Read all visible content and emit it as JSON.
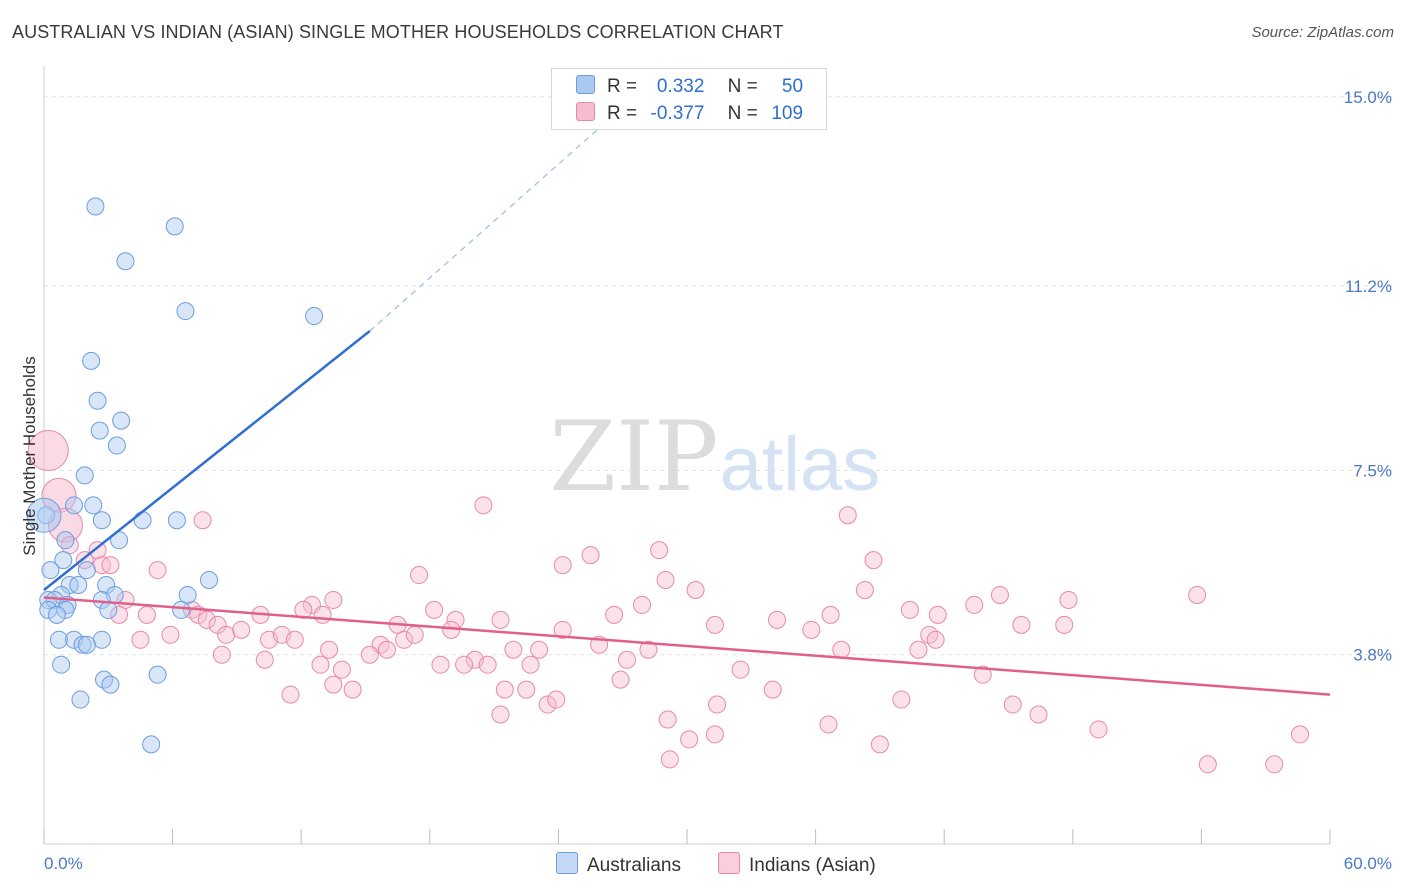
{
  "header": {
    "title": "AUSTRALIAN VS INDIAN (ASIAN) SINGLE MOTHER HOUSEHOLDS CORRELATION CHART",
    "source": "Source: ZipAtlas.com"
  },
  "watermark": {
    "zip": "ZIP",
    "atlas": "atlas"
  },
  "legend": {
    "r_label": "R =",
    "n_label": "N =",
    "rows": [
      {
        "r": "0.332",
        "n": "50",
        "color": "#aac8f0",
        "border": "#6a9ee0"
      },
      {
        "r": "-0.377",
        "n": "109",
        "color": "#f6bcd0",
        "border": "#e889aa"
      }
    ]
  },
  "bottom_legend": [
    {
      "label": "Australians",
      "color": "#c4d9f5",
      "border": "#6a9ee0"
    },
    {
      "label": "Indians (Asian)",
      "color": "#f9cfdd",
      "border": "#e889aa"
    }
  ],
  "chart_data": {
    "type": "scatter",
    "title": "AUSTRALIAN VS INDIAN (ASIAN) SINGLE MOTHER HOUSEHOLDS CORRELATION CHART",
    "xlabel": "",
    "ylabel": "Single Mother Households",
    "xlim": [
      0,
      60
    ],
    "ylim": [
      0,
      15.5
    ],
    "x_tick_labels": [
      {
        "value": 0,
        "label": "0.0%"
      },
      {
        "value": 60,
        "label": "60.0%"
      }
    ],
    "y_tick_labels": [
      {
        "value": 3.8,
        "label": "3.8%"
      },
      {
        "value": 7.5,
        "label": "7.5%"
      },
      {
        "value": 11.2,
        "label": "11.2%"
      },
      {
        "value": 15.0,
        "label": "15.0%"
      }
    ],
    "x_minor_ticks": [
      0,
      6,
      12,
      18,
      24,
      30,
      36,
      42,
      48,
      54,
      60
    ],
    "grid": true,
    "legend_position": "top-center",
    "series": [
      {
        "name": "Australians",
        "color": "#6a9ee0",
        "fill": "#aac8f0",
        "r": 0.332,
        "n": 50,
        "trend": {
          "x": [
            0,
            15.2
          ],
          "y": [
            5.1,
            10.3
          ],
          "dashed_to": [
            26.5,
            14.6
          ],
          "color": "#2f6fd0"
        },
        "points": [
          [
            2.4,
            12.8
          ],
          [
            6.1,
            12.4
          ],
          [
            3.8,
            11.7
          ],
          [
            6.6,
            10.7
          ],
          [
            12.6,
            10.6
          ],
          [
            2.2,
            9.7
          ],
          [
            2.5,
            8.9
          ],
          [
            3.6,
            8.5
          ],
          [
            2.6,
            8.3
          ],
          [
            3.4,
            8.0
          ],
          [
            1.9,
            7.4
          ],
          [
            0.1,
            6.6
          ],
          [
            2.3,
            6.8
          ],
          [
            1.4,
            6.8
          ],
          [
            2.7,
            6.5
          ],
          [
            4.6,
            6.5
          ],
          [
            6.2,
            6.5
          ],
          [
            3.5,
            6.1
          ],
          [
            1.0,
            6.1
          ],
          [
            0.9,
            5.7
          ],
          [
            2.0,
            5.5
          ],
          [
            0.3,
            5.5
          ],
          [
            7.7,
            5.3
          ],
          [
            1.2,
            5.2
          ],
          [
            1.6,
            5.2
          ],
          [
            2.9,
            5.2
          ],
          [
            6.7,
            5.0
          ],
          [
            0.8,
            5.0
          ],
          [
            3.3,
            5.0
          ],
          [
            0.2,
            4.9
          ],
          [
            0.5,
            4.9
          ],
          [
            1.1,
            4.8
          ],
          [
            2.7,
            4.9
          ],
          [
            0.2,
            4.7
          ],
          [
            1.0,
            4.7
          ],
          [
            3.0,
            4.7
          ],
          [
            6.4,
            4.7
          ],
          [
            0.6,
            4.6
          ],
          [
            0.7,
            4.1
          ],
          [
            1.4,
            4.1
          ],
          [
            2.7,
            4.1
          ],
          [
            1.8,
            4.0
          ],
          [
            2.0,
            4.0
          ],
          [
            0.8,
            3.6
          ],
          [
            5.3,
            3.4
          ],
          [
            2.8,
            3.3
          ],
          [
            3.1,
            3.2
          ],
          [
            1.7,
            2.9
          ],
          [
            5.0,
            2.0
          ],
          [
            0.0,
            6.6
          ]
        ]
      },
      {
        "name": "Indians (Asian)",
        "color": "#e889aa",
        "fill": "#f6bcd0",
        "r": -0.377,
        "n": 109,
        "trend": {
          "x": [
            0,
            60
          ],
          "y": [
            4.95,
            3.0
          ],
          "color": "#e0608a"
        },
        "points": [
          [
            0.2,
            7.9
          ],
          [
            0.7,
            7.0
          ],
          [
            1.0,
            6.4
          ],
          [
            7.4,
            6.5
          ],
          [
            20.5,
            6.8
          ],
          [
            37.5,
            6.6
          ],
          [
            1.2,
            6.0
          ],
          [
            2.5,
            5.9
          ],
          [
            1.9,
            5.7
          ],
          [
            2.7,
            5.6
          ],
          [
            3.1,
            5.6
          ],
          [
            25.5,
            5.8
          ],
          [
            28.7,
            5.9
          ],
          [
            38.7,
            5.7
          ],
          [
            24.2,
            5.6
          ],
          [
            5.3,
            5.5
          ],
          [
            17.5,
            5.4
          ],
          [
            29.0,
            5.3
          ],
          [
            38.3,
            5.1
          ],
          [
            30.4,
            5.1
          ],
          [
            53.8,
            5.0
          ],
          [
            44.6,
            5.0
          ],
          [
            47.8,
            4.9
          ],
          [
            40.4,
            4.7
          ],
          [
            43.4,
            4.8
          ],
          [
            13.5,
            4.9
          ],
          [
            12.5,
            4.8
          ],
          [
            27.9,
            4.8
          ],
          [
            18.2,
            4.7
          ],
          [
            12.1,
            4.7
          ],
          [
            3.8,
            4.9
          ],
          [
            4.8,
            4.6
          ],
          [
            6.9,
            4.7
          ],
          [
            3.5,
            4.6
          ],
          [
            7.2,
            4.6
          ],
          [
            10.1,
            4.6
          ],
          [
            13.0,
            4.6
          ],
          [
            19.2,
            4.5
          ],
          [
            21.3,
            4.5
          ],
          [
            26.6,
            4.6
          ],
          [
            34.2,
            4.5
          ],
          [
            36.7,
            4.6
          ],
          [
            41.7,
            4.6
          ],
          [
            7.6,
            4.5
          ],
          [
            8.1,
            4.4
          ],
          [
            16.5,
            4.4
          ],
          [
            8.5,
            4.2
          ],
          [
            9.2,
            4.3
          ],
          [
            10.5,
            4.1
          ],
          [
            11.1,
            4.2
          ],
          [
            11.7,
            4.1
          ],
          [
            15.7,
            4.0
          ],
          [
            16.8,
            4.1
          ],
          [
            17.3,
            4.2
          ],
          [
            19.0,
            4.3
          ],
          [
            24.2,
            4.3
          ],
          [
            25.9,
            4.0
          ],
          [
            31.3,
            4.4
          ],
          [
            35.8,
            4.3
          ],
          [
            37.2,
            3.9
          ],
          [
            41.3,
            4.2
          ],
          [
            41.6,
            4.1
          ],
          [
            45.6,
            4.4
          ],
          [
            47.6,
            4.4
          ],
          [
            5.9,
            4.2
          ],
          [
            4.5,
            4.1
          ],
          [
            8.3,
            3.8
          ],
          [
            10.3,
            3.7
          ],
          [
            13.3,
            3.9
          ],
          [
            15.2,
            3.8
          ],
          [
            16.0,
            3.9
          ],
          [
            20.1,
            3.7
          ],
          [
            21.9,
            3.9
          ],
          [
            23.1,
            3.9
          ],
          [
            27.2,
            3.7
          ],
          [
            28.2,
            3.9
          ],
          [
            12.9,
            3.6
          ],
          [
            13.9,
            3.5
          ],
          [
            18.5,
            3.6
          ],
          [
            19.6,
            3.6
          ],
          [
            20.7,
            3.6
          ],
          [
            22.7,
            3.6
          ],
          [
            32.5,
            3.5
          ],
          [
            40.8,
            3.9
          ],
          [
            43.8,
            3.4
          ],
          [
            26.9,
            3.3
          ],
          [
            13.5,
            3.2
          ],
          [
            14.4,
            3.1
          ],
          [
            21.5,
            3.1
          ],
          [
            22.5,
            3.1
          ],
          [
            34.0,
            3.1
          ],
          [
            11.5,
            3.0
          ],
          [
            31.4,
            2.8
          ],
          [
            40.0,
            2.9
          ],
          [
            21.3,
            2.6
          ],
          [
            23.5,
            2.8
          ],
          [
            23.9,
            2.9
          ],
          [
            29.1,
            2.5
          ],
          [
            46.4,
            2.6
          ],
          [
            45.2,
            2.8
          ],
          [
            36.6,
            2.4
          ],
          [
            49.2,
            2.3
          ],
          [
            30.1,
            2.1
          ],
          [
            31.3,
            2.2
          ],
          [
            39.0,
            2.0
          ],
          [
            58.6,
            2.2
          ],
          [
            29.2,
            1.7
          ],
          [
            57.4,
            1.6
          ],
          [
            54.3,
            1.6
          ]
        ]
      }
    ]
  }
}
